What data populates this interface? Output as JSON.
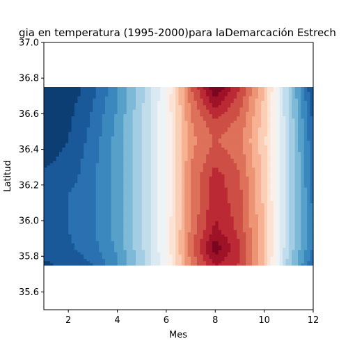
{
  "chart_data": {
    "type": "heatmap",
    "title": "gia en temperatura (1995-2000)para laDemarcación Estrech",
    "xlabel": "Mes",
    "ylabel": "Latitud",
    "xlim": [
      1,
      12
    ],
    "ylim": [
      35.5,
      37.0
    ],
    "xticks": [
      "2",
      "4",
      "6",
      "8",
      "10",
      "12"
    ],
    "yticks": [
      "35.6",
      "35.8",
      "36.0",
      "36.2",
      "36.4",
      "36.6",
      "36.8",
      "37.0"
    ],
    "x": [
      1,
      2,
      3,
      4,
      5,
      6,
      7,
      8,
      9,
      10,
      11,
      12
    ],
    "y": [
      35.75,
      35.85,
      35.95,
      36.05,
      36.15,
      36.25,
      36.35,
      36.45,
      36.55,
      36.65,
      36.75
    ],
    "z": [
      [
        -0.92,
        -0.88,
        -0.8,
        -0.62,
        -0.34,
        -0.02,
        0.5,
        0.8,
        0.68,
        0.28,
        -0.36,
        -0.8
      ],
      [
        -0.86,
        -0.82,
        -0.74,
        -0.58,
        -0.32,
        0.0,
        0.55,
        0.96,
        0.7,
        0.3,
        -0.32,
        -0.72
      ],
      [
        -0.82,
        -0.8,
        -0.72,
        -0.56,
        -0.3,
        0.0,
        0.52,
        0.82,
        0.66,
        0.28,
        -0.3,
        -0.7
      ],
      [
        -0.84,
        -0.8,
        -0.72,
        -0.56,
        -0.3,
        0.0,
        0.5,
        0.78,
        0.64,
        0.28,
        -0.3,
        -0.72
      ],
      [
        -0.86,
        -0.8,
        -0.72,
        -0.56,
        -0.3,
        0.0,
        0.5,
        0.76,
        0.62,
        0.26,
        -0.28,
        -0.74
      ],
      [
        -0.88,
        -0.86,
        -0.72,
        -0.56,
        -0.3,
        0.0,
        0.5,
        0.74,
        0.6,
        0.26,
        -0.28,
        -0.76
      ],
      [
        -0.92,
        -0.88,
        -0.74,
        -0.56,
        -0.3,
        0.0,
        0.48,
        0.66,
        0.56,
        0.24,
        -0.28,
        -0.78
      ],
      [
        -0.94,
        -0.9,
        -0.76,
        -0.56,
        -0.3,
        0.0,
        0.46,
        0.6,
        0.52,
        0.22,
        -0.28,
        -0.8
      ],
      [
        -0.94,
        -0.92,
        -0.78,
        -0.58,
        -0.3,
        0.0,
        0.48,
        0.66,
        0.56,
        0.24,
        -0.3,
        -0.82
      ],
      [
        -0.97,
        -0.94,
        -0.8,
        -0.6,
        -0.32,
        0.0,
        0.52,
        0.82,
        0.62,
        0.26,
        -0.32,
        -0.86
      ],
      [
        -1.0,
        -0.98,
        -0.84,
        -0.62,
        -0.34,
        -0.02,
        0.58,
        0.99,
        0.7,
        0.3,
        -0.34,
        -0.92
      ]
    ],
    "colormap": "RdBu_r",
    "contour_levels": 20,
    "grid": false
  }
}
